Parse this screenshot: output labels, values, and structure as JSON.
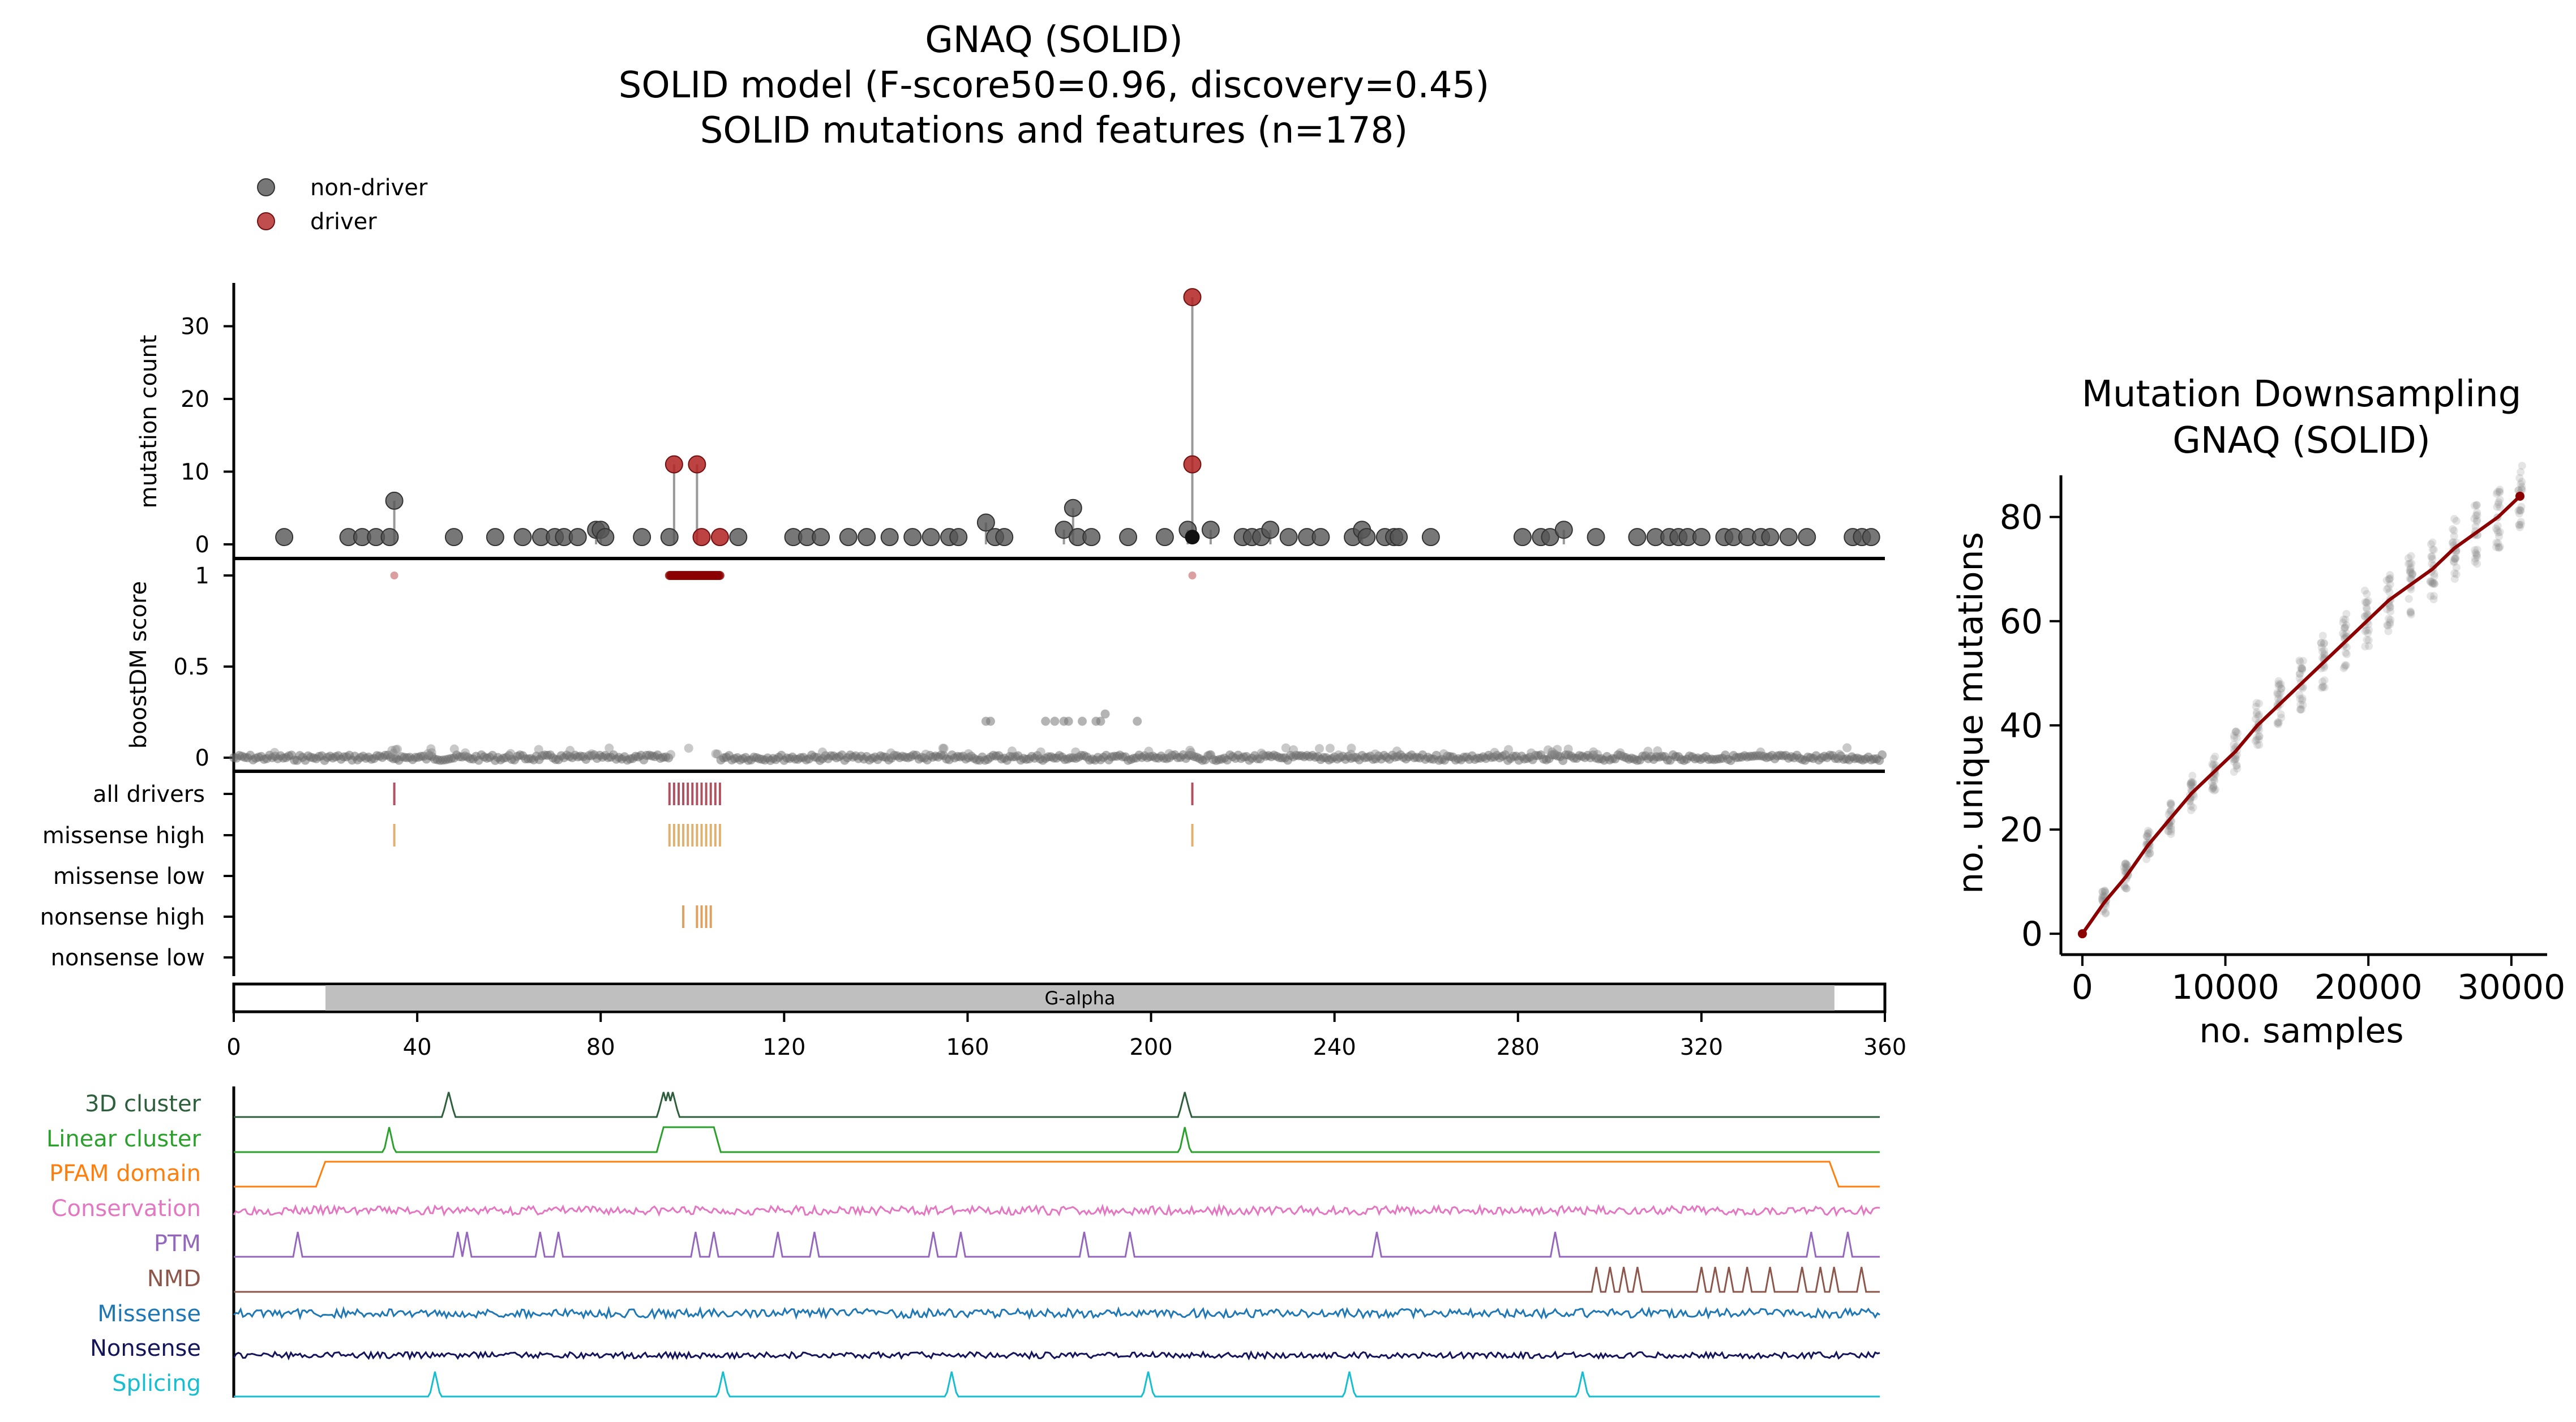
{
  "main_panel": {
    "title_lines": [
      "GNAQ (SOLID)",
      "SOLID model (F-score50=0.96, discovery=0.45)",
      "SOLID mutations and features (n=178)"
    ],
    "legend": [
      {
        "label": "non-driver",
        "color": "#555555"
      },
      {
        "label": "driver",
        "color": "#b22222"
      }
    ],
    "count_axis": {
      "ylabel": "mutation count",
      "ticks": [
        0,
        10,
        20,
        30
      ],
      "ylim": [
        -1.5,
        37
      ]
    },
    "score_axis": {
      "ylabel": "boostDM score",
      "ticks": [
        "0",
        "0.5",
        "1"
      ]
    },
    "track_rows": [
      "all drivers",
      "missense high",
      "missense low",
      "nonsense high",
      "nonsense low"
    ],
    "domain": {
      "name": "G-alpha",
      "start": 20,
      "end": 349,
      "color": "#bfbfbf"
    },
    "x_axis": {
      "ticks": [
        0,
        40,
        80,
        120,
        160,
        200,
        240,
        280,
        320,
        360
      ],
      "xlim": [
        0,
        360
      ]
    },
    "feature_tracks": [
      {
        "label": "3D cluster",
        "color": "#2e5f3d"
      },
      {
        "label": "Linear cluster",
        "color": "#2ca02c"
      },
      {
        "label": "PFAM domain",
        "color": "#ff7f0e"
      },
      {
        "label": "Conservation",
        "color": "#e377c2"
      },
      {
        "label": "PTM",
        "color": "#9467bd"
      },
      {
        "label": "NMD",
        "color": "#8c564b"
      },
      {
        "label": "Missense",
        "color": "#1f77b4"
      },
      {
        "label": "Nonsense",
        "color": "#14145a"
      },
      {
        "label": "Splicing",
        "color": "#17becf"
      }
    ],
    "colors": {
      "nondriver": "#555555",
      "driver": "#b22222",
      "score_driver": "#8b0000",
      "drivers_tick": "#b05060",
      "missense_tick": "#e0b070",
      "nonsense_tick": "#e0a060"
    }
  },
  "chart_data": [
    {
      "type": "scatter",
      "title": "GNAQ (SOLID)",
      "xlabel": "",
      "ylabel": "mutation count",
      "xlim": [
        0,
        360
      ],
      "nondriver_points": [
        [
          11,
          1
        ],
        [
          25,
          1
        ],
        [
          28,
          1
        ],
        [
          31,
          1
        ],
        [
          34,
          1
        ],
        [
          35,
          6
        ],
        [
          48,
          1
        ],
        [
          57,
          1
        ],
        [
          63,
          1
        ],
        [
          67,
          1
        ],
        [
          70,
          1
        ],
        [
          72,
          1
        ],
        [
          75,
          1
        ],
        [
          79,
          2
        ],
        [
          80,
          2
        ],
        [
          81,
          1
        ],
        [
          89,
          1
        ],
        [
          95,
          1
        ],
        [
          110,
          1
        ],
        [
          122,
          1
        ],
        [
          125,
          1
        ],
        [
          128,
          1
        ],
        [
          134,
          1
        ],
        [
          138,
          1
        ],
        [
          143,
          1
        ],
        [
          148,
          1
        ],
        [
          152,
          1
        ],
        [
          156,
          1
        ],
        [
          158,
          1
        ],
        [
          164,
          3
        ],
        [
          166,
          1
        ],
        [
          168,
          1
        ],
        [
          181,
          2
        ],
        [
          183,
          5
        ],
        [
          184,
          1
        ],
        [
          187,
          1
        ],
        [
          195,
          1
        ],
        [
          203,
          1
        ],
        [
          208,
          2
        ],
        [
          213,
          2
        ],
        [
          220,
          1
        ],
        [
          222,
          1
        ],
        [
          224,
          1
        ],
        [
          226,
          2
        ],
        [
          230,
          1
        ],
        [
          234,
          1
        ],
        [
          237,
          1
        ],
        [
          244,
          1
        ],
        [
          246,
          2
        ],
        [
          247,
          1
        ],
        [
          251,
          1
        ],
        [
          253,
          1
        ],
        [
          254,
          1
        ],
        [
          261,
          1
        ],
        [
          281,
          1
        ],
        [
          285,
          1
        ],
        [
          287,
          1
        ],
        [
          290,
          2
        ],
        [
          297,
          1
        ],
        [
          306,
          1
        ],
        [
          310,
          1
        ],
        [
          313,
          1
        ],
        [
          315,
          1
        ],
        [
          317,
          1
        ],
        [
          320,
          1
        ],
        [
          325,
          1
        ],
        [
          327,
          1
        ],
        [
          330,
          1
        ],
        [
          333,
          1
        ],
        [
          335,
          1
        ],
        [
          339,
          1
        ],
        [
          343,
          1
        ],
        [
          353,
          1
        ],
        [
          355,
          1
        ],
        [
          357,
          1
        ]
      ],
      "driver_points": [
        [
          96,
          11
        ],
        [
          101,
          11
        ],
        [
          102,
          1
        ],
        [
          106,
          1
        ],
        [
          209,
          34
        ],
        [
          209,
          11
        ]
      ],
      "black_point": [
        209,
        1
      ]
    },
    {
      "type": "scatter",
      "ylabel": "boostDM score",
      "xlim": [
        0,
        360
      ],
      "ylim": [
        0,
        1
      ],
      "driver_range": [
        95,
        106
      ],
      "high_points": [
        [
          35,
          1
        ],
        [
          209,
          1
        ]
      ],
      "mid_points": [
        [
          164,
          0.2
        ],
        [
          165,
          0.2
        ],
        [
          177,
          0.2
        ],
        [
          179,
          0.2
        ],
        [
          181,
          0.2
        ],
        [
          182,
          0.2
        ],
        [
          185,
          0.2
        ],
        [
          189,
          0.2
        ],
        [
          190,
          0.24
        ],
        [
          197,
          0.2
        ],
        [
          188,
          0.2
        ]
      ]
    },
    {
      "type": "scatter",
      "title": "",
      "xlabel": "",
      "ylabel": "",
      "rows": [
        "all drivers",
        "missense high",
        "missense low",
        "nonsense high",
        "nonsense low"
      ],
      "positions": {
        "all drivers": [
          35,
          95,
          96,
          97,
          98,
          99,
          100,
          101,
          102,
          103,
          104,
          105,
          106,
          209
        ],
        "missense high": [
          35,
          95,
          96,
          97,
          98,
          99,
          100,
          101,
          102,
          103,
          104,
          105,
          106,
          209
        ],
        "missense low": [],
        "nonsense high": [
          98,
          101,
          102,
          103,
          104
        ],
        "nonsense low": []
      }
    },
    {
      "type": "line",
      "title": "Mutation Downsampling\nGNAQ (SOLID)",
      "xlabel": "no. samples",
      "ylabel": "no. unique mutations",
      "xlim": [
        -1500,
        32500
      ],
      "ylim": [
        -4,
        88
      ],
      "xticks": [
        0,
        10000,
        20000,
        30000
      ],
      "yticks": [
        0,
        20,
        40,
        60,
        80
      ],
      "x": [
        0,
        1530,
        3060,
        4590,
        6120,
        7650,
        9180,
        10710,
        12240,
        13770,
        15300,
        16830,
        18360,
        19890,
        21420,
        22950,
        24480,
        26010,
        27540,
        29070,
        30600
      ],
      "y": [
        0,
        6,
        11,
        17,
        22,
        27,
        31,
        35,
        40,
        44,
        48,
        52,
        56,
        60,
        64,
        67,
        70,
        74,
        77,
        80,
        84
      ],
      "line_color": "#8b0000"
    }
  ],
  "downsampling_panel": {
    "title_lines": [
      "Mutation Downsampling",
      "GNAQ (SOLID)"
    ],
    "xlabel": "no. samples",
    "ylabel": "no. unique mutations"
  }
}
